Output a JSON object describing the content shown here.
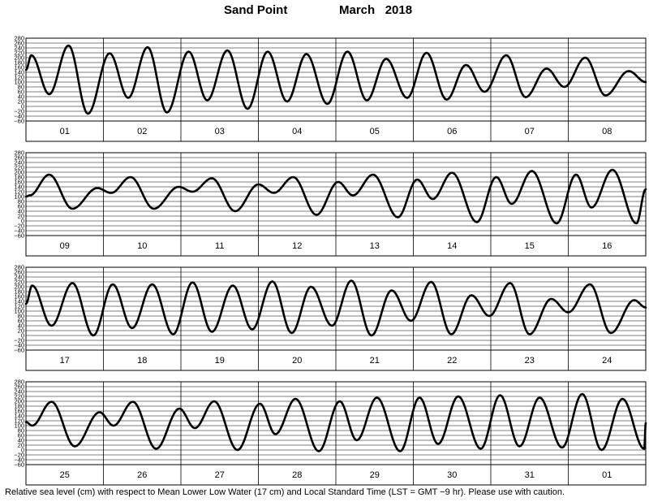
{
  "title": {
    "station": "Sand Point",
    "month": "March",
    "year": "2018"
  },
  "footnote": "Relative sea level (cm) with respect to Mean Lower Low Water (17 cm) and Local Standard Time (LST = GMT −9 hr). Please use with caution.",
  "colors": {
    "line": "#000000",
    "grid": "#000000",
    "background": "#ffffff"
  },
  "chart_data": {
    "type": "line",
    "ylim": [
      -60,
      280
    ],
    "yticks": [
      "280",
      "260",
      "240",
      "220",
      "200",
      "180",
      "160",
      "140",
      "120",
      "100",
      "80",
      "60",
      "40",
      "20",
      "0",
      "−20",
      "−40",
      "−60"
    ],
    "grid": true,
    "panels": [
      {
        "days": [
          "01",
          "02",
          "03",
          "04",
          "05",
          "06",
          "07",
          "08"
        ],
        "extrema": [
          [
            0,
            150
          ],
          [
            0.07,
            210
          ],
          [
            0.3,
            50
          ],
          [
            0.55,
            250
          ],
          [
            0.8,
            -30
          ],
          [
            1.08,
            218
          ],
          [
            1.32,
            35
          ],
          [
            1.57,
            243
          ],
          [
            1.82,
            -25
          ],
          [
            2.1,
            225
          ],
          [
            2.34,
            25
          ],
          [
            2.6,
            230
          ],
          [
            2.86,
            -10
          ],
          [
            3.12,
            225
          ],
          [
            3.37,
            20
          ],
          [
            3.62,
            215
          ],
          [
            3.89,
            10
          ],
          [
            4.15,
            225
          ],
          [
            4.4,
            25
          ],
          [
            4.65,
            195
          ],
          [
            4.92,
            35
          ],
          [
            5.17,
            220
          ],
          [
            5.43,
            28
          ],
          [
            5.68,
            170
          ],
          [
            5.92,
            60
          ],
          [
            6.2,
            210
          ],
          [
            6.45,
            38
          ],
          [
            6.72,
            155
          ],
          [
            6.95,
            80
          ],
          [
            7.22,
            200
          ],
          [
            7.48,
            45
          ],
          [
            7.78,
            145
          ],
          [
            8.0,
            100
          ]
        ]
      },
      {
        "days": [
          "09",
          "10",
          "11",
          "12",
          "13",
          "14",
          "15",
          "16"
        ],
        "extrema": [
          [
            0,
            100
          ],
          [
            0.05,
            105
          ],
          [
            0.3,
            190
          ],
          [
            0.6,
            50
          ],
          [
            0.92,
            135
          ],
          [
            1.1,
            115
          ],
          [
            1.35,
            180
          ],
          [
            1.65,
            50
          ],
          [
            1.97,
            140
          ],
          [
            2.15,
            120
          ],
          [
            2.4,
            175
          ],
          [
            2.7,
            40
          ],
          [
            3.0,
            150
          ],
          [
            3.2,
            115
          ],
          [
            3.45,
            180
          ],
          [
            3.75,
            25
          ],
          [
            4.03,
            160
          ],
          [
            4.22,
            105
          ],
          [
            4.48,
            190
          ],
          [
            4.8,
            15
          ],
          [
            5.05,
            170
          ],
          [
            5.25,
            90
          ],
          [
            5.5,
            198
          ],
          [
            5.82,
            -5
          ],
          [
            6.07,
            180
          ],
          [
            6.27,
            70
          ],
          [
            6.53,
            205
          ],
          [
            6.85,
            -10
          ],
          [
            7.1,
            190
          ],
          [
            7.3,
            55
          ],
          [
            7.57,
            210
          ],
          [
            7.88,
            -10
          ],
          [
            8.0,
            130
          ]
        ]
      },
      {
        "days": [
          "17",
          "18",
          "19",
          "20",
          "21",
          "22",
          "23",
          "24"
        ],
        "extrema": [
          [
            0,
            130
          ],
          [
            0.08,
            205
          ],
          [
            0.33,
            40
          ],
          [
            0.6,
            215
          ],
          [
            0.87,
            0
          ],
          [
            1.12,
            210
          ],
          [
            1.37,
            30
          ],
          [
            1.63,
            210
          ],
          [
            1.9,
            5
          ],
          [
            2.15,
            218
          ],
          [
            2.4,
            15
          ],
          [
            2.67,
            205
          ],
          [
            2.92,
            25
          ],
          [
            3.18,
            222
          ],
          [
            3.43,
            10
          ],
          [
            3.68,
            200
          ],
          [
            3.95,
            40
          ],
          [
            4.2,
            225
          ],
          [
            4.46,
            0
          ],
          [
            4.72,
            185
          ],
          [
            4.97,
            60
          ],
          [
            5.23,
            220
          ],
          [
            5.49,
            5
          ],
          [
            5.75,
            165
          ],
          [
            5.98,
            80
          ],
          [
            6.25,
            215
          ],
          [
            6.5,
            5
          ],
          [
            6.78,
            150
          ],
          [
            7.0,
            95
          ],
          [
            7.28,
            210
          ],
          [
            7.55,
            10
          ],
          [
            7.85,
            145
          ],
          [
            8.0,
            115
          ]
        ]
      },
      {
        "days": [
          "25",
          "26",
          "27",
          "28",
          "29",
          "30",
          "31",
          "01"
        ],
        "extrema": [
          [
            0,
            115
          ],
          [
            0.08,
            100
          ],
          [
            0.33,
            198
          ],
          [
            0.63,
            15
          ],
          [
            0.95,
            155
          ],
          [
            1.13,
            100
          ],
          [
            1.38,
            198
          ],
          [
            1.68,
            5
          ],
          [
            1.98,
            170
          ],
          [
            2.18,
            90
          ],
          [
            2.43,
            200
          ],
          [
            2.73,
            0
          ],
          [
            3.02,
            190
          ],
          [
            3.22,
            65
          ],
          [
            3.48,
            210
          ],
          [
            3.78,
            -5
          ],
          [
            4.05,
            200
          ],
          [
            4.27,
            40
          ],
          [
            4.53,
            215
          ],
          [
            4.83,
            -5
          ],
          [
            5.08,
            215
          ],
          [
            5.32,
            25
          ],
          [
            5.58,
            220
          ],
          [
            5.87,
            5
          ],
          [
            6.12,
            225
          ],
          [
            6.37,
            15
          ],
          [
            6.63,
            215
          ],
          [
            6.92,
            10
          ],
          [
            7.18,
            230
          ],
          [
            7.43,
            0
          ],
          [
            7.7,
            210
          ],
          [
            7.98,
            5
          ],
          [
            8.0,
            110
          ]
        ]
      }
    ]
  }
}
